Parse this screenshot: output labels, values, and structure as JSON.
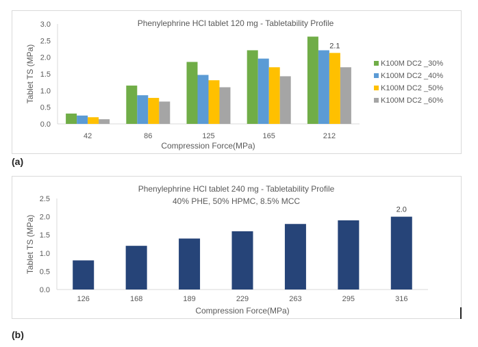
{
  "panels": {
    "a": {
      "label": "(a)"
    },
    "b": {
      "label": "(b)"
    }
  },
  "chart_data": [
    {
      "id": "a",
      "type": "bar",
      "title": "Phenylephrine HCl tablet 120 mg - Tabletability Profile",
      "subtitle": "",
      "xlabel": "Compression Force(MPa)",
      "ylabel": "Tablet TS  (MPa)",
      "ylim": [
        0,
        3.0
      ],
      "yticks": [
        "0.0",
        "0.5",
        "1.0",
        "1.5",
        "2.0",
        "2.5",
        "3.0"
      ],
      "ytick_values": [
        0,
        0.5,
        1.0,
        1.5,
        2.0,
        2.5,
        3.0
      ],
      "grid": false,
      "legend_position": "right",
      "categories": [
        "42",
        "86",
        "125",
        "165",
        "212"
      ],
      "series": [
        {
          "name": "K100M DC2 _30%",
          "color": "#70AD47",
          "values": [
            0.31,
            1.15,
            1.86,
            2.21,
            2.62
          ]
        },
        {
          "name": "K100M DC2 _40%",
          "color": "#5B9BD5",
          "values": [
            0.25,
            0.86,
            1.47,
            1.96,
            2.21
          ]
        },
        {
          "name": "K100M DC2 _50%",
          "color": "#FFC000",
          "values": [
            0.2,
            0.78,
            1.31,
            1.7,
            2.13
          ]
        },
        {
          "name": "K100M DC2 _60%",
          "color": "#A5A5A5",
          "values": [
            0.14,
            0.67,
            1.1,
            1.43,
            1.7
          ]
        }
      ],
      "data_labels": [
        {
          "series": 2,
          "category": 4,
          "text": "2.1"
        }
      ]
    },
    {
      "id": "b",
      "type": "bar",
      "title": "Phenylephrine HCl tablet 240 mg - Tabletability Profile",
      "subtitle": "40% PHE, 50% HPMC, 8.5% MCC",
      "xlabel": "Compression Force(MPa)",
      "ylabel": "Tablet TS  (MPa)",
      "ylim": [
        0,
        2.5
      ],
      "yticks": [
        "0.0",
        "0.5",
        "1.0",
        "1.5",
        "2.0",
        "2.5"
      ],
      "ytick_values": [
        0,
        0.5,
        1.0,
        1.5,
        2.0,
        2.5
      ],
      "grid": false,
      "legend_position": "none",
      "categories": [
        "126",
        "168",
        "189",
        "229",
        "263",
        "295",
        "316"
      ],
      "series": [
        {
          "name": "Tablet TS",
          "color": "#264478",
          "values": [
            0.8,
            1.2,
            1.4,
            1.6,
            1.8,
            1.9,
            2.0
          ]
        }
      ],
      "data_labels": [
        {
          "series": 0,
          "category": 6,
          "text": "2.0"
        }
      ]
    }
  ]
}
